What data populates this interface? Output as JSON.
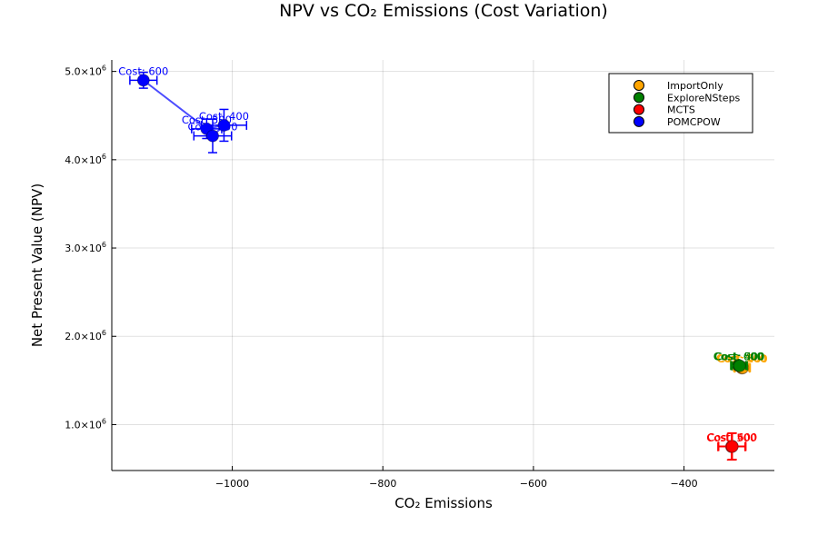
{
  "chart_data": {
    "type": "scatter",
    "title": "NPV vs CO₂ Emissions (Cost Variation)",
    "xlabel": "CO₂ Emissions",
    "ylabel": "Net Present Value (NPV)",
    "xlim": [
      -1160,
      -280
    ],
    "ylim": [
      480000,
      5130000
    ],
    "xticks": [
      -1000,
      -800,
      -600,
      -400
    ],
    "xtick_labels": [
      "−1000",
      "−800",
      "−600",
      "−400"
    ],
    "yticks": [
      1000000,
      2000000,
      3000000,
      4000000,
      5000000
    ],
    "ytick_labels": [
      {
        "mantissa": "1.0×10",
        "exp": "6"
      },
      {
        "mantissa": "2.0×10",
        "exp": "6"
      },
      {
        "mantissa": "3.0×10",
        "exp": "6"
      },
      {
        "mantissa": "4.0×10",
        "exp": "6"
      },
      {
        "mantissa": "5.0×10",
        "exp": "6"
      }
    ],
    "grid": true,
    "legend_position": "top-right",
    "series": [
      {
        "name": "ImportOnly",
        "color": "#FFA500",
        "points": [
          {
            "x": -323,
            "y": 1640000,
            "xerr": 10,
            "yerr": 40000,
            "label": "Cost: 600"
          },
          {
            "x": -324,
            "y": 1650000,
            "xerr": 10,
            "yerr": 40000,
            "label": "Cost: 500"
          },
          {
            "x": -322,
            "y": 1645000,
            "xerr": 10,
            "yerr": 40000,
            "label": "Cost: 400"
          }
        ]
      },
      {
        "name": "ExploreNSteps",
        "color": "#008000",
        "points": [
          {
            "x": -328,
            "y": 1670000,
            "xerr": 10,
            "yerr": 30000,
            "label": "Cost: 600"
          },
          {
            "x": -327,
            "y": 1668000,
            "xerr": 10,
            "yerr": 30000,
            "label": "Cost: 500"
          },
          {
            "x": -326,
            "y": 1666000,
            "xerr": 10,
            "yerr": 30000,
            "label": "Cost: 400"
          }
        ]
      },
      {
        "name": "MCTS",
        "color": "#FF0000",
        "points": [
          {
            "x": -336,
            "y": 755000,
            "xerr": 18,
            "yerr": 150000,
            "label": "Cost: 600"
          },
          {
            "x": -337,
            "y": 750000,
            "xerr": 18,
            "yerr": 150000,
            "label": "Cost: 500"
          },
          {
            "x": -336,
            "y": 752000,
            "xerr": 18,
            "yerr": 150000,
            "label": "Cost: 400"
          }
        ]
      },
      {
        "name": "POMCPOW",
        "color": "#0000FF",
        "connected": true,
        "points": [
          {
            "x": -1118,
            "y": 4900000,
            "xerr": 18,
            "yerr": 90000,
            "label": "Cost: 600"
          },
          {
            "x": -1034,
            "y": 4350000,
            "xerr": 20,
            "yerr": 110000,
            "label": "Cost: 500"
          },
          {
            "x": -1011,
            "y": 4390000,
            "xerr": 30,
            "yerr": 180000,
            "label": "Cost: 400"
          },
          {
            "x": -1026,
            "y": 4270000,
            "xerr": 25,
            "yerr": 190000,
            "label": "Cost: 500"
          }
        ]
      }
    ]
  }
}
